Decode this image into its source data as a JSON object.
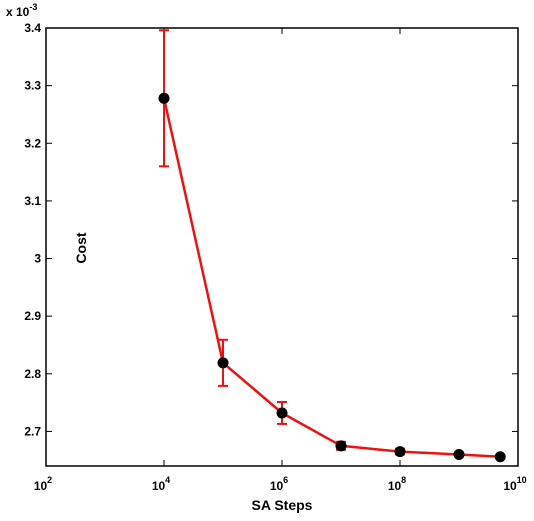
{
  "chart_data": {
    "type": "line",
    "title": "",
    "xlabel": "SA Steps",
    "ylabel": "Cost",
    "x_scale": "log",
    "xlim": [
      100,
      10000000000
    ],
    "ylim": [
      2.64,
      3.4
    ],
    "y_multiplier_label": "x 10",
    "y_multiplier_exponent": "-3",
    "x_ticks": [
      {
        "base": "10",
        "exp": "2",
        "value": 100
      },
      {
        "base": "10",
        "exp": "4",
        "value": 10000
      },
      {
        "base": "10",
        "exp": "6",
        "value": 1000000
      },
      {
        "base": "10",
        "exp": "8",
        "value": 100000000
      },
      {
        "base": "10",
        "exp": "10",
        "value": 10000000000
      }
    ],
    "y_ticks": [
      {
        "label": "2.7",
        "value": 2.7
      },
      {
        "label": "2.8",
        "value": 2.8
      },
      {
        "label": "2.9",
        "value": 2.9
      },
      {
        "label": "3",
        "value": 3.0
      },
      {
        "label": "3.1",
        "value": 3.1
      },
      {
        "label": "3.2",
        "value": 3.2
      },
      {
        "label": "3.3",
        "value": 3.3
      },
      {
        "label": "3.4",
        "value": 3.4
      }
    ],
    "grid": false,
    "series": [
      {
        "line_color": "#ee1111",
        "marker_color": "#000000",
        "x": [
          10000,
          100000,
          1000000,
          10000000,
          100000000,
          1000000000,
          5000000000
        ],
        "y": [
          3.278,
          2.819,
          2.732,
          2.675,
          2.665,
          2.66,
          2.656
        ],
        "error": [
          0.118,
          0.04,
          0.019,
          0.007,
          0.005,
          0.003,
          0.002
        ]
      }
    ]
  }
}
